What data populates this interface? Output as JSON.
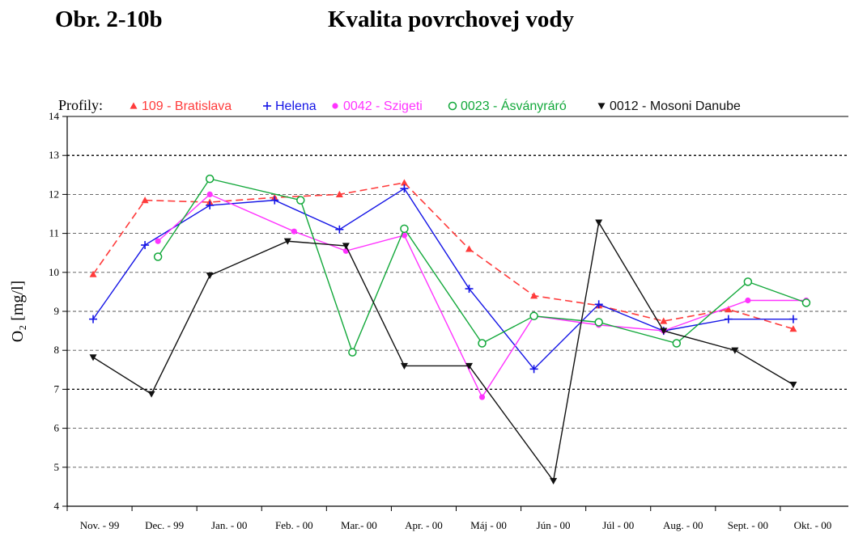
{
  "header": {
    "figure_label": "Obr. 2-10b",
    "title": "Kvalita povrchovej vody"
  },
  "chart_data": {
    "type": "line",
    "ylabel": "O₂ [mg/l]",
    "xlabel": "",
    "ylim": [
      4,
      14
    ],
    "yticks": [
      4,
      5,
      6,
      7,
      8,
      9,
      10,
      11,
      12,
      13,
      14
    ],
    "grid": "horizontal dashed",
    "legend_title": "Profily:",
    "legend_position": "top",
    "categories": [
      "Nov. - 99",
      "Dec. - 99",
      "Jan. - 00",
      "Feb. - 00",
      "Mar.- 00",
      "Apr. - 00",
      "Máj - 00",
      "Jún - 00",
      "Júl - 00",
      "Aug. - 00",
      "Sept. - 00",
      "Okt. - 00"
    ],
    "series": [
      {
        "name": "109 - Bratislava",
        "color": "#ff3b3b",
        "marker": "triangle-up",
        "dash": true,
        "points": [
          [
            0.2,
            9.95
          ],
          [
            1.0,
            11.85
          ],
          [
            2.0,
            11.8
          ],
          [
            3.0,
            11.92
          ],
          [
            4.0,
            12.0
          ],
          [
            5.0,
            12.3
          ],
          [
            6.0,
            10.6
          ],
          [
            7.0,
            9.4
          ],
          [
            8.0,
            9.15
          ],
          [
            9.0,
            8.75
          ],
          [
            10.0,
            9.05
          ],
          [
            11.0,
            8.55
          ]
        ]
      },
      {
        "name": "Helena",
        "color": "#1414e6",
        "marker": "plus",
        "dash": false,
        "points": [
          [
            0.2,
            8.8
          ],
          [
            1.0,
            10.7
          ],
          [
            2.0,
            11.72
          ],
          [
            3.0,
            11.85
          ],
          [
            4.0,
            11.1
          ],
          [
            5.0,
            12.15
          ],
          [
            6.0,
            9.58
          ],
          [
            7.0,
            7.52
          ],
          [
            8.0,
            9.18
          ],
          [
            9.0,
            8.5
          ],
          [
            10.0,
            8.8
          ],
          [
            11.0,
            8.8
          ]
        ]
      },
      {
        "name": "0042 - Szigeti",
        "color": "#ff33ff",
        "marker": "circle-filled",
        "dash": false,
        "points": [
          [
            1.2,
            10.8
          ],
          [
            2.0,
            12.0
          ],
          [
            3.3,
            11.05
          ],
          [
            4.1,
            10.55
          ],
          [
            5.0,
            10.95
          ],
          [
            6.2,
            6.8
          ],
          [
            7.0,
            8.88
          ],
          [
            8.0,
            8.65
          ],
          [
            9.0,
            8.5
          ],
          [
            10.3,
            9.28
          ],
          [
            11.2,
            9.28
          ]
        ]
      },
      {
        "name": "0023 - Ásványráró",
        "color": "#12a83a",
        "marker": "circle-open",
        "dash": false,
        "points": [
          [
            1.2,
            10.4
          ],
          [
            2.0,
            12.4
          ],
          [
            3.4,
            11.85
          ],
          [
            4.2,
            7.95
          ],
          [
            5.0,
            11.12
          ],
          [
            6.2,
            8.18
          ],
          [
            7.0,
            8.88
          ],
          [
            8.0,
            8.72
          ],
          [
            9.2,
            8.18
          ],
          [
            10.3,
            9.76
          ],
          [
            11.2,
            9.22
          ]
        ]
      },
      {
        "name": "0012 - Mosoni Danube",
        "color": "#111111",
        "marker": "triangle-down",
        "dash": false,
        "points": [
          [
            0.2,
            7.82
          ],
          [
            1.1,
            6.88
          ],
          [
            2.0,
            9.92
          ],
          [
            3.2,
            10.8
          ],
          [
            4.1,
            10.68
          ],
          [
            5.0,
            7.6
          ],
          [
            6.0,
            7.6
          ],
          [
            7.3,
            4.65
          ],
          [
            8.0,
            11.28
          ],
          [
            9.0,
            8.5
          ],
          [
            10.1,
            8.0
          ],
          [
            11.0,
            7.12
          ]
        ]
      }
    ]
  }
}
